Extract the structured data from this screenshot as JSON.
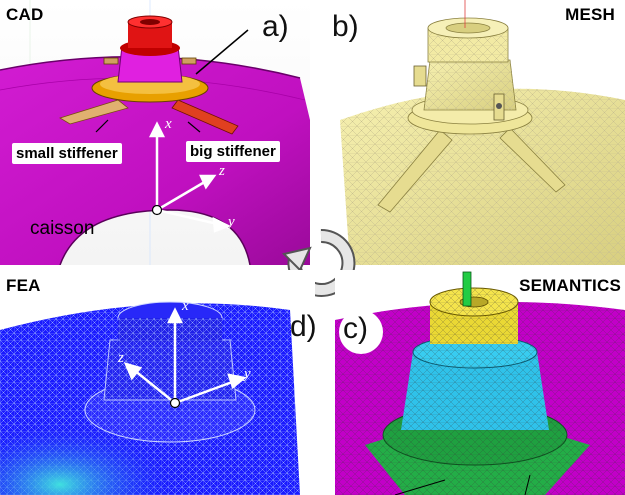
{
  "panels": {
    "cad": {
      "title": "CAD",
      "letter": "a)",
      "labels": {
        "small_stiffener": "small stiffener",
        "big_stiffener": "big stiffener",
        "caisson": "caisson"
      }
    },
    "mesh": {
      "title": "MESH",
      "letter": "b)"
    },
    "fea": {
      "title": "FEA",
      "letter": "d)"
    },
    "semantics": {
      "title": "SEMANTICS",
      "letter": "c)"
    }
  },
  "axes": {
    "x": "x",
    "y": "y",
    "z": "z"
  },
  "icons": {
    "cycle": "rotate-arrow-icon"
  },
  "colors": {
    "caisson": "#c800c8",
    "cad_top": "#e01414",
    "cad_ring": "#e8a000",
    "mesh": "#efe89a",
    "fea_mesh": "#1a1aff",
    "sem_top": "#f0e040",
    "sem_mid": "#2fc2ea",
    "sem_base": "#22aa44"
  }
}
